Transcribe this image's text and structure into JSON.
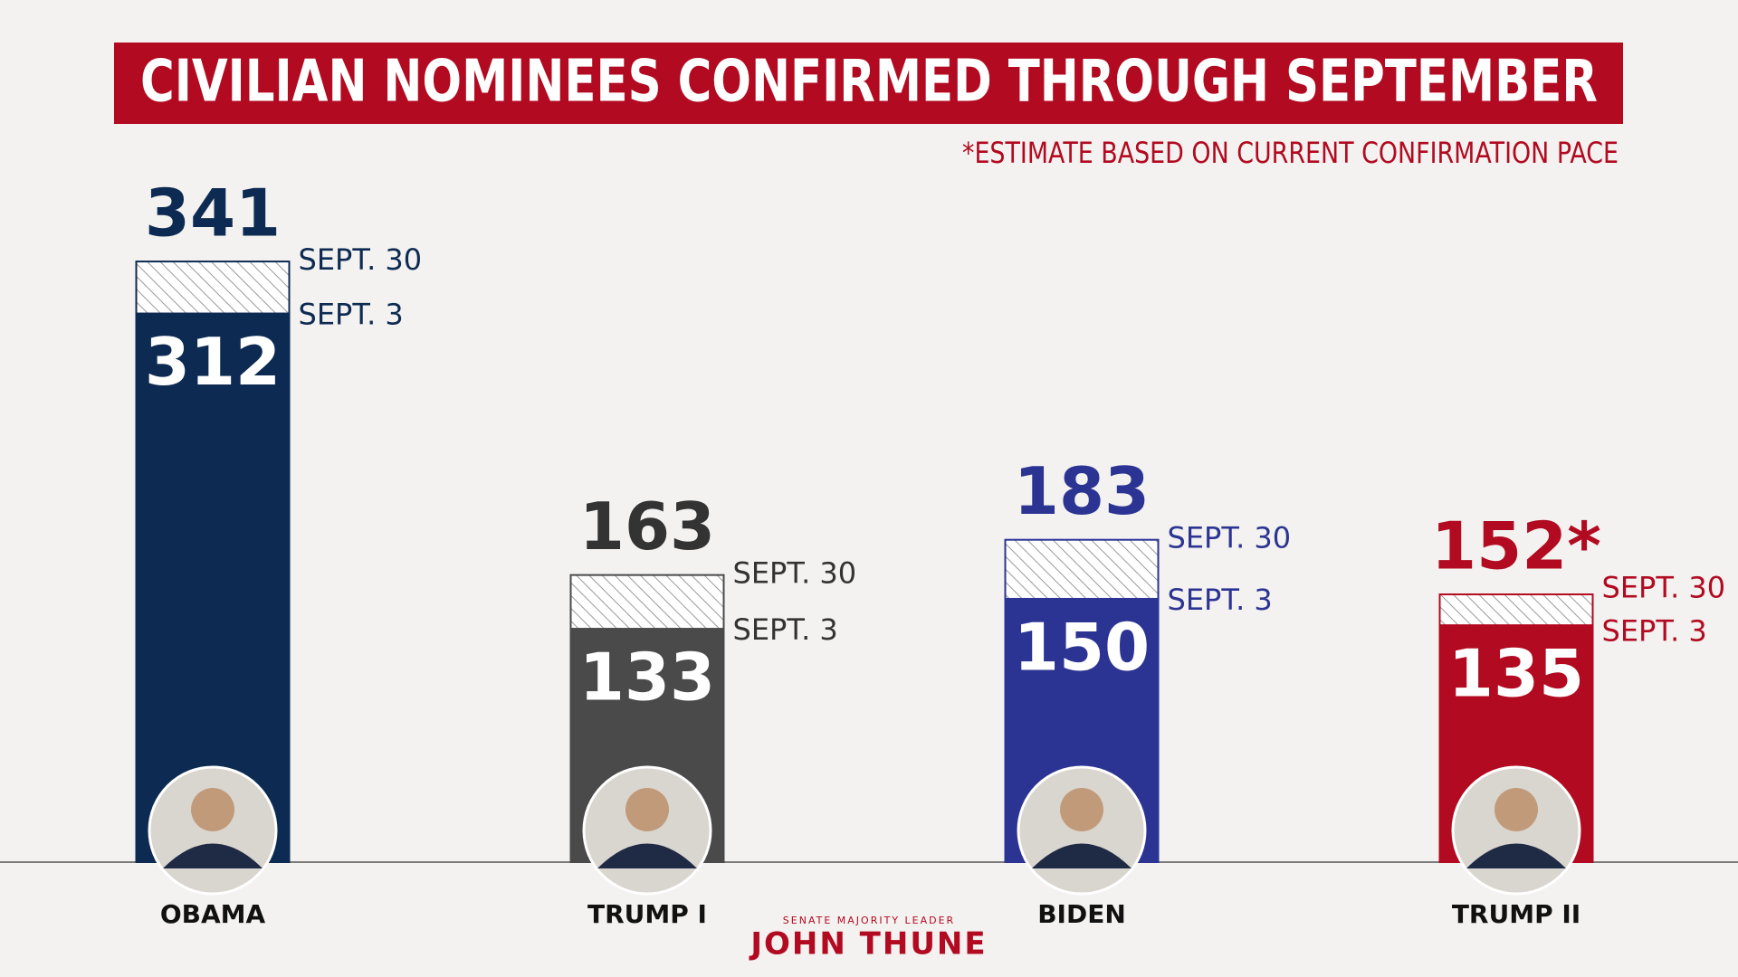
{
  "chart_data": {
    "type": "bar",
    "title": "CIVILIAN NOMINEES CONFIRMED THROUGH SEPTEMBER",
    "footnote": "*ESTIMATE BASED ON CURRENT CONFIRMATION PACE",
    "categories": [
      "OBAMA",
      "TRUMP I",
      "BIDEN",
      "TRUMP II"
    ],
    "colors": [
      "#0d2b52",
      "#4a4a4a",
      "#2c3493",
      "#b20a20"
    ],
    "series": [
      {
        "name": "SEPT. 30",
        "values": [
          341,
          163,
          183,
          152
        ],
        "value_labels": [
          "341",
          "163",
          "183",
          "152*"
        ]
      },
      {
        "name": "SEPT. 3",
        "values": [
          312,
          133,
          150,
          135
        ]
      }
    ]
  },
  "branding": {
    "subtitle": "SENATE MAJORITY LEADER",
    "name": "JOHN THUNE"
  }
}
